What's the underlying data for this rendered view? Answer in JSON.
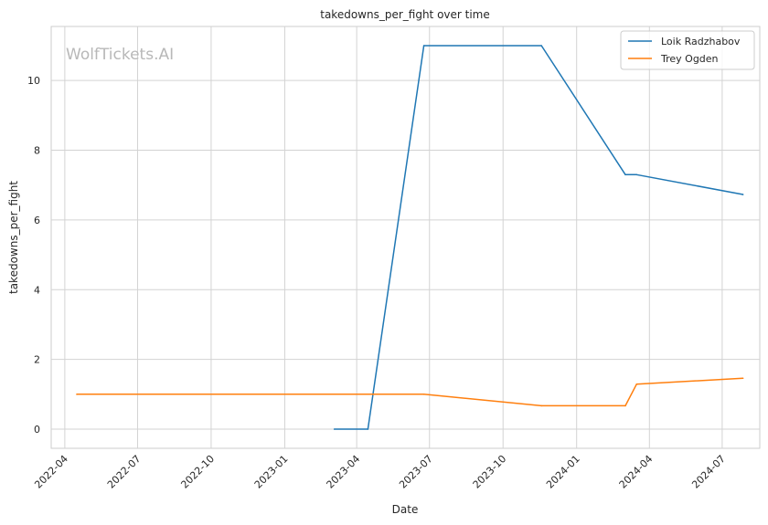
{
  "watermark": "WolfTickets.AI",
  "chart_data": {
    "type": "line",
    "title": "takedowns_per_fight over time",
    "xlabel": "Date",
    "ylabel": "takedowns_per_fight",
    "x_ticks": [
      "2022-04",
      "2022-07",
      "2022-10",
      "2023-01",
      "2023-04",
      "2023-07",
      "2023-10",
      "2024-01",
      "2024-04",
      "2024-07"
    ],
    "y_ticks": [
      0,
      2,
      4,
      6,
      8,
      10
    ],
    "xlim": [
      "2022-03-15",
      "2024-08-17"
    ],
    "ylim": [
      -0.55,
      11.55
    ],
    "grid": true,
    "legend_position": "top-right",
    "series": [
      {
        "name": "Loik Radzhabov",
        "color": "#1f77b4",
        "points": [
          {
            "x": "2023-03-04",
            "y": 0
          },
          {
            "x": "2023-04-15",
            "y": 0
          },
          {
            "x": "2023-06-24",
            "y": 11
          },
          {
            "x": "2023-11-18",
            "y": 11
          },
          {
            "x": "2024-03-02",
            "y": 7.3
          },
          {
            "x": "2024-03-16",
            "y": 7.3
          },
          {
            "x": "2024-07-27",
            "y": 6.73
          }
        ]
      },
      {
        "name": "Trey Ogden",
        "color": "#ff7f0e",
        "points": [
          {
            "x": "2022-04-16",
            "y": 1
          },
          {
            "x": "2023-06-24",
            "y": 1
          },
          {
            "x": "2023-11-18",
            "y": 0.67
          },
          {
            "x": "2024-03-02",
            "y": 0.67
          },
          {
            "x": "2024-03-16",
            "y": 1.29
          },
          {
            "x": "2024-07-27",
            "y": 1.46
          }
        ]
      }
    ]
  }
}
